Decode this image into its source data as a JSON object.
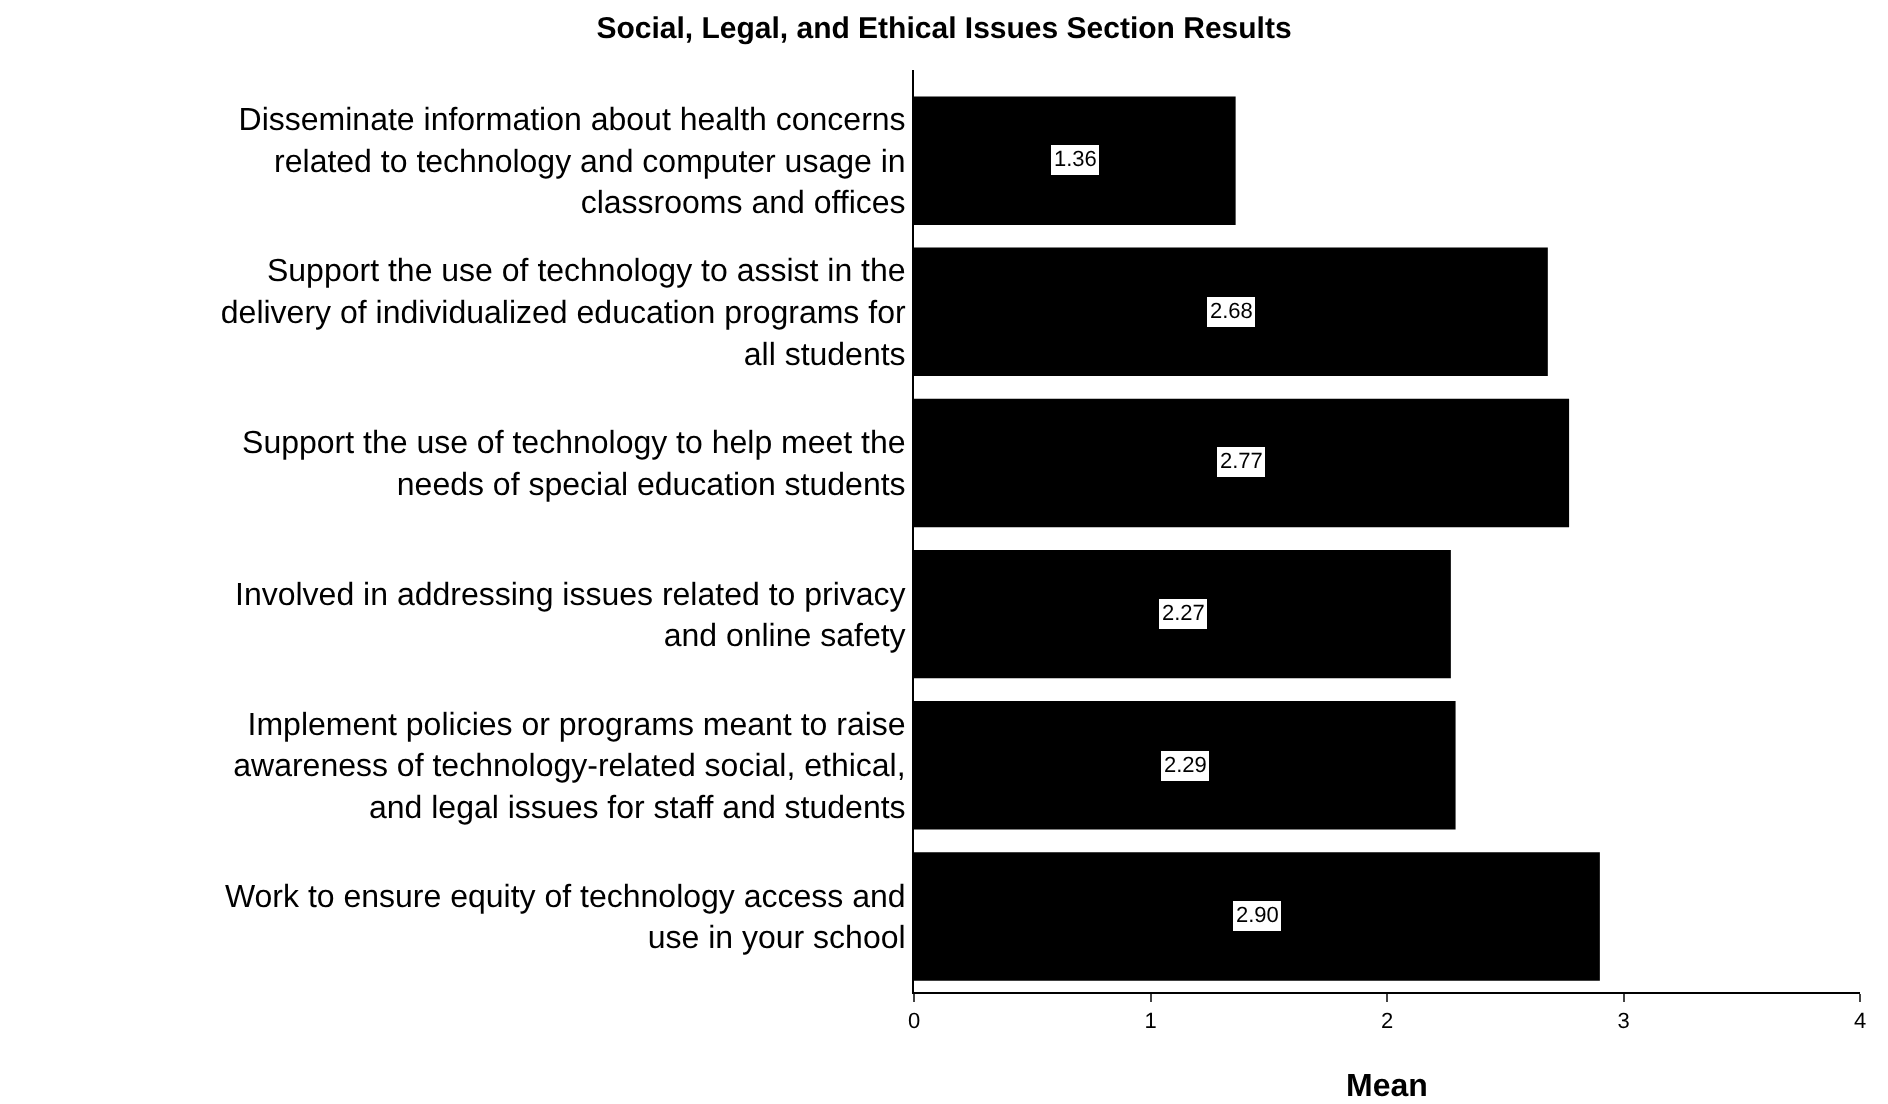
{
  "chart_data": {
    "type": "bar",
    "orientation": "horizontal",
    "title": "Social, Legal, and Ethical Issues Section Results",
    "xlabel": "Mean",
    "categories": [
      "Disseminate information about health concerns related to technology and computer usage in classrooms and offices",
      "Support the use of technology to assist in the delivery of individualized education programs for all students",
      "Support the use of technology to help meet the needs of special education students",
      "Involved in addressing issues related to privacy and online safety",
      "Implement policies or programs meant to raise awareness of technology-related social, ethical, and legal issues for staff and students",
      "Work to ensure equity of technology access and use in your school"
    ],
    "values": [
      1.36,
      2.68,
      2.77,
      2.27,
      2.29,
      2.9
    ],
    "value_labels": [
      "1.36",
      "2.68",
      "2.77",
      "2.27",
      "2.29",
      "2.90"
    ],
    "color": "#000000",
    "xlim": [
      0,
      4
    ],
    "xticks": [
      0,
      1,
      2,
      3,
      4
    ]
  }
}
